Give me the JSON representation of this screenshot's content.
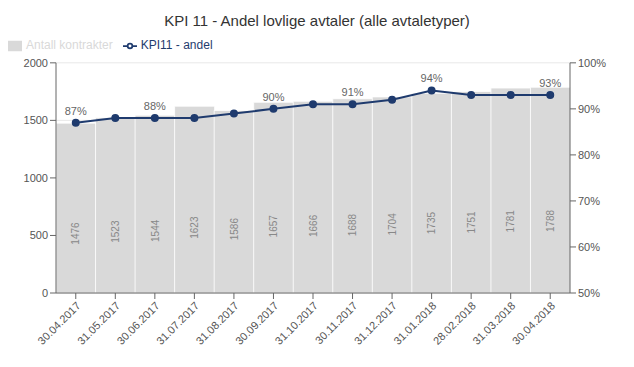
{
  "chart_data": {
    "type": "bar",
    "title": "KPI 11 - Andel lovlige avtaler (alle avtaletyper)",
    "categories": [
      "30.04.2017",
      "31.05.2017",
      "30.06.2017",
      "31.07.2017",
      "31.08.2017",
      "30.09.2017",
      "31.10.2017",
      "30.11.2017",
      "31.12.2017",
      "31.01.2018",
      "28.02.2018",
      "31.03.2018",
      "30.04.2018"
    ],
    "series": [
      {
        "name": "Antall kontrakter",
        "type": "bar",
        "color": "#d9d9d9",
        "values": [
          1476,
          1523,
          1544,
          1623,
          1586,
          1657,
          1666,
          1688,
          1704,
          1735,
          1751,
          1781,
          1788
        ],
        "data_labels": true
      },
      {
        "name": "KPI11 - andel",
        "type": "line",
        "color": "#1f3b6e",
        "marker": "circle",
        "axis": "y2",
        "values": [
          87,
          88,
          88,
          88,
          89,
          90,
          91,
          91,
          92,
          94,
          93,
          93,
          93
        ],
        "value_labels": [
          "87%",
          null,
          "88%",
          null,
          null,
          "90%",
          null,
          "91%",
          null,
          "94%",
          null,
          null,
          "93%"
        ]
      }
    ],
    "ylim": [
      0,
      2000
    ],
    "yticks": [
      0,
      500,
      1000,
      1500,
      2000
    ],
    "y2lim": [
      50,
      100
    ],
    "y2ticks": [
      {
        "value": 50,
        "label": "50%"
      },
      {
        "value": 60,
        "label": "60%"
      },
      {
        "value": 70,
        "label": "70%"
      },
      {
        "value": 80,
        "label": "80%"
      },
      {
        "value": 90,
        "label": "90%"
      },
      {
        "value": 100,
        "label": "100%"
      }
    ],
    "grid": true,
    "legend": "upper left"
  }
}
